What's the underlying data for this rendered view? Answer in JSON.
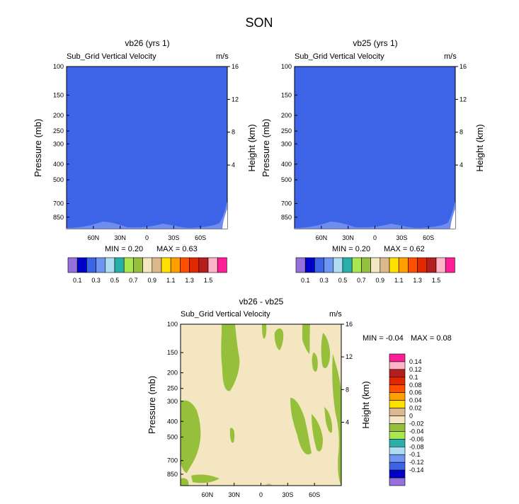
{
  "page_title": "SON",
  "colors": {
    "panel_fill": "#3d63e6",
    "panel_wave": "#6f8cf0",
    "diff_background": "#f3e6c0",
    "diff_positive_zero": "#96c03c",
    "diff_low_tan": "#dcb98c"
  },
  "chart_data": [
    {
      "type": "heatmap",
      "title": "vb26 (yrs 1)",
      "subtitle": "Sub_Grid Vertical Velocity",
      "units": "m/s",
      "ylabel": "Pressure (mb)",
      "ylabel_right": "Height (km)",
      "y_ticks": [
        "100",
        "150",
        "200",
        "250",
        "300",
        "400",
        "500",
        "700",
        "850"
      ],
      "y_ticks_right": [
        "16",
        "12",
        "8",
        "4"
      ],
      "x_ticks": [
        "60N",
        "30N",
        "0",
        "30S",
        "60S"
      ],
      "min_label": "MIN =  0.20",
      "max_label": "MAX =  0.63",
      "min": 0.2,
      "max": 0.63,
      "colorbar_labels": [
        "0.1",
        "0.3",
        "0.5",
        "0.7",
        "0.9",
        "1.1",
        "1.3",
        "1.5"
      ],
      "colorbar_colors": [
        "#9370db",
        "#0000c8",
        "#3c64e6",
        "#6e96f0",
        "#afdcf0",
        "#28afaa",
        "#aae650",
        "#96c03c",
        "#f5e6c3",
        "#dcb98c",
        "#ffe100",
        "#ffa000",
        "#ff5000",
        "#e12800",
        "#b41e1e",
        "#ffb4c8",
        "#ff1e96"
      ]
    },
    {
      "type": "heatmap",
      "title": "vb25 (yrs 1)",
      "subtitle": "Sub_Grid Vertical Velocity",
      "units": "m/s",
      "ylabel": "Pressure (mb)",
      "ylabel_right": "Height (km)",
      "y_ticks": [
        "100",
        "150",
        "200",
        "250",
        "300",
        "400",
        "500",
        "700",
        "850"
      ],
      "y_ticks_right": [
        "16",
        "12",
        "8",
        "4"
      ],
      "x_ticks": [
        "60N",
        "30N",
        "0",
        "30S",
        "60S"
      ],
      "min_label": "MIN =  0.20",
      "max_label": "MAX =  0.62",
      "min": 0.2,
      "max": 0.62,
      "colorbar_labels": [
        "0.1",
        "0.3",
        "0.5",
        "0.7",
        "0.9",
        "1.1",
        "1.3",
        "1.5"
      ],
      "colorbar_colors": [
        "#9370db",
        "#0000c8",
        "#3c64e6",
        "#6e96f0",
        "#afdcf0",
        "#28afaa",
        "#aae650",
        "#96c03c",
        "#f5e6c3",
        "#dcb98c",
        "#ffe100",
        "#ffa000",
        "#ff5000",
        "#e12800",
        "#b41e1e",
        "#ffb4c8",
        "#ff1e96"
      ]
    },
    {
      "type": "heatmap",
      "title": "vb26 - vb25",
      "subtitle": "Sub_Grid Vertical Velocity",
      "units": "m/s",
      "ylabel": "Pressure (mb)",
      "ylabel_right": "Height (km)",
      "y_ticks": [
        "100",
        "150",
        "200",
        "250",
        "300",
        "400",
        "500",
        "700",
        "850"
      ],
      "y_ticks_right": [
        "16",
        "12",
        "8",
        "4"
      ],
      "x_ticks": [
        "60N",
        "30N",
        "0",
        "30S",
        "60S"
      ],
      "min_label": "MIN = -0.04",
      "max_label": "MAX =  0.08",
      "min": -0.04,
      "max": 0.08,
      "colorbar_labels": [
        "0.14",
        "0.12",
        "0.1",
        "0.08",
        "0.06",
        "0.04",
        "0.02",
        "0",
        "-0.02",
        "-0.04",
        "-0.06",
        "-0.08",
        "-0.1",
        "-0.12",
        "-0.14"
      ],
      "colorbar_colors": [
        "#ff1e96",
        "#ffb4c8",
        "#b41e1e",
        "#e12800",
        "#ff5000",
        "#ffa000",
        "#ffe100",
        "#dcb98c",
        "#f5e6c3",
        "#96c03c",
        "#aae650",
        "#28afaa",
        "#afdcf0",
        "#6e96f0",
        "#3c64e6",
        "#0000c8",
        "#9370db"
      ]
    }
  ]
}
